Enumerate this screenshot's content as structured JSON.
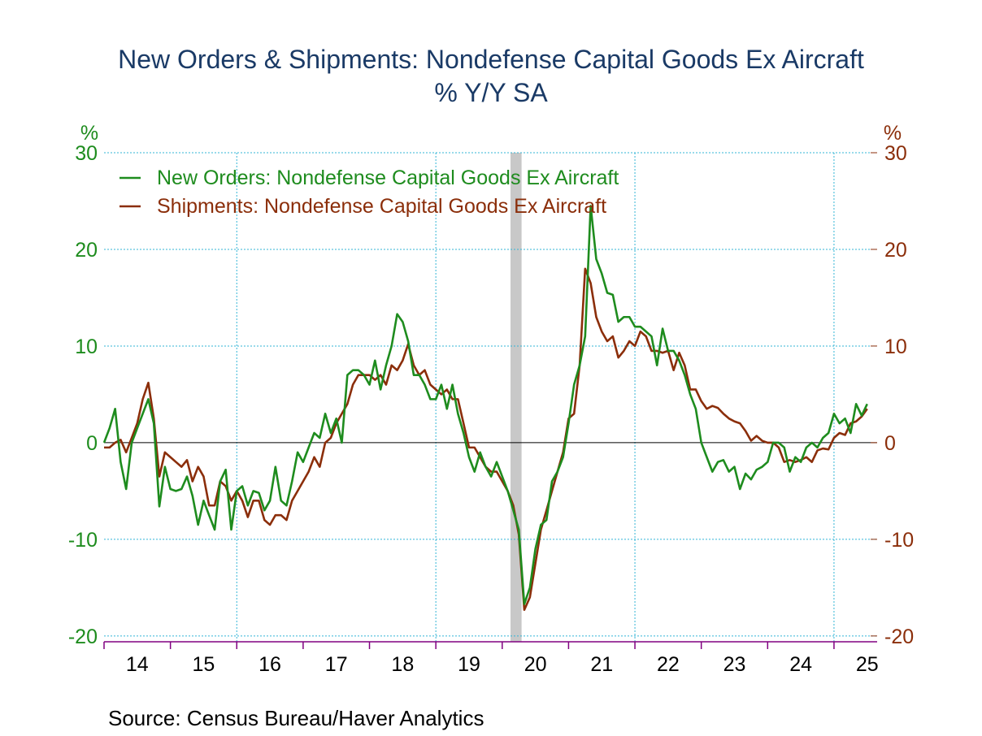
{
  "chart_data": {
    "type": "line",
    "title": "New Orders & Shipments: Nondefense Capital Goods Ex Aircraft",
    "subtitle": "% Y/Y   SA",
    "y_label": "%",
    "y2_label": "%",
    "source": "Source:  Census Bureau/Haver Analytics",
    "xlim": [
      2014,
      2025.65
    ],
    "xticks": [
      {
        "value": 2014.5,
        "label": "14"
      },
      {
        "value": 2015.5,
        "label": "15"
      },
      {
        "value": 2016.5,
        "label": "16"
      },
      {
        "value": 2017.5,
        "label": "17"
      },
      {
        "value": 2018.5,
        "label": "18"
      },
      {
        "value": 2019.5,
        "label": "19"
      },
      {
        "value": 2020.5,
        "label": "20"
      },
      {
        "value": 2021.5,
        "label": "21"
      },
      {
        "value": 2022.5,
        "label": "22"
      },
      {
        "value": 2023.5,
        "label": "23"
      },
      {
        "value": 2024.5,
        "label": "24"
      },
      {
        "value": 2025.5,
        "label": "25"
      }
    ],
    "xgrid": [
      2016,
      2019,
      2022,
      2025
    ],
    "recession": [
      2020.125,
      2020.292
    ],
    "ylim": [
      -20.6,
      30
    ],
    "yticks": [
      -20,
      -10,
      0,
      10,
      20,
      30
    ],
    "y2lim": [
      -20.6,
      30
    ],
    "y2ticks": [
      -20,
      -10,
      0,
      10,
      20,
      30
    ],
    "grid": true,
    "x": [
      2014.0,
      2014.083,
      2014.167,
      2014.25,
      2014.333,
      2014.417,
      2014.5,
      2014.583,
      2014.667,
      2014.75,
      2014.833,
      2014.917,
      2015.0,
      2015.083,
      2015.167,
      2015.25,
      2015.333,
      2015.417,
      2015.5,
      2015.583,
      2015.667,
      2015.75,
      2015.833,
      2015.917,
      2016.0,
      2016.083,
      2016.167,
      2016.25,
      2016.333,
      2016.417,
      2016.5,
      2016.583,
      2016.667,
      2016.75,
      2016.833,
      2016.917,
      2017.0,
      2017.083,
      2017.167,
      2017.25,
      2017.333,
      2017.417,
      2017.5,
      2017.583,
      2017.667,
      2017.75,
      2017.833,
      2017.917,
      2018.0,
      2018.083,
      2018.167,
      2018.25,
      2018.333,
      2018.417,
      2018.5,
      2018.583,
      2018.667,
      2018.75,
      2018.833,
      2018.917,
      2019.0,
      2019.083,
      2019.167,
      2019.25,
      2019.333,
      2019.417,
      2019.5,
      2019.583,
      2019.667,
      2019.75,
      2019.833,
      2019.917,
      2020.0,
      2020.083,
      2020.167,
      2020.25,
      2020.333,
      2020.417,
      2020.5,
      2020.583,
      2020.667,
      2020.75,
      2020.833,
      2020.917,
      2021.0,
      2021.083,
      2021.167,
      2021.25,
      2021.333,
      2021.417,
      2021.5,
      2021.583,
      2021.667,
      2021.75,
      2021.833,
      2021.917,
      2022.0,
      2022.083,
      2022.167,
      2022.25,
      2022.333,
      2022.417,
      2022.5,
      2022.583,
      2022.667,
      2022.75,
      2022.833,
      2022.917,
      2023.0,
      2023.083,
      2023.167,
      2023.25,
      2023.333,
      2023.417,
      2023.5,
      2023.583,
      2023.667,
      2023.75,
      2023.833,
      2023.917,
      2024.0,
      2024.083,
      2024.167,
      2024.25,
      2024.333,
      2024.417,
      2024.5,
      2024.583,
      2024.667,
      2024.75,
      2024.833,
      2024.917,
      2025.0,
      2025.083,
      2025.167,
      2025.25,
      2025.333,
      2025.417,
      2025.5
    ],
    "series": [
      {
        "name": "New Orders: Nondefense Capital Goods Ex Aircraft",
        "color": "#1e8c1e",
        "axis": "y",
        "values": [
          0,
          1.5,
          3.5,
          -2,
          -4.8,
          0,
          1.5,
          3,
          4.5,
          2,
          -6.6,
          -2.5,
          -4.8,
          -5,
          -4.8,
          -3.5,
          -5.5,
          -8.5,
          -6,
          -7.5,
          -9,
          -4,
          -2.8,
          -9,
          -5,
          -4.5,
          -6.5,
          -5,
          -5.2,
          -7,
          -6,
          -2.5,
          -6,
          -6.5,
          -4,
          -1,
          -2,
          -0.5,
          1,
          0.5,
          3,
          1,
          2.5,
          0,
          7,
          7.5,
          7.5,
          7,
          6,
          8.5,
          5.5,
          8,
          10,
          13.3,
          12.5,
          10.5,
          7,
          7,
          6,
          4.5,
          4.5,
          6,
          3.5,
          6,
          3,
          1,
          -1.5,
          -3,
          -1,
          -2.5,
          -3.5,
          -2,
          -3.5,
          -5,
          -7,
          -9,
          -16.7,
          -15,
          -11,
          -8.5,
          -8,
          -4,
          -3,
          -1.5,
          2,
          6,
          8,
          11,
          24.5,
          19,
          17.5,
          15.5,
          15.3,
          12.5,
          13,
          13,
          12,
          12,
          11.5,
          11,
          8,
          11.8,
          9.5,
          9.5,
          8.5,
          7,
          5,
          3.5,
          0,
          -1.5,
          -3,
          -2,
          -1.8,
          -3,
          -2.5,
          -4.8,
          -3.2,
          -3.8,
          -2.8,
          -2.5,
          -2,
          0,
          0,
          -0.5,
          -3,
          -1.5,
          -2,
          -0.5,
          0,
          -0.5,
          0.5,
          1,
          3,
          2,
          2.5,
          1,
          4,
          2.8,
          4
        ]
      },
      {
        "name": "Shipments: Nondefense Capital Goods Ex Aircraft",
        "color": "#8b2e0a",
        "axis": "y2",
        "values": [
          -0.5,
          -0.5,
          0,
          0.3,
          -1,
          0.5,
          2,
          4.5,
          6.2,
          2.5,
          -3.5,
          -1,
          -1.5,
          -2,
          -2.5,
          -1.8,
          -4,
          -2.5,
          -3.5,
          -6.5,
          -6.5,
          -4,
          -4.5,
          -6,
          -5,
          -6,
          -7.7,
          -6,
          -6,
          -8,
          -8.5,
          -7.5,
          -7.5,
          -8,
          -6,
          -5,
          -4,
          -3,
          -1.5,
          -2.5,
          0,
          0.5,
          2,
          3,
          4,
          6,
          7,
          7,
          7,
          6.5,
          7,
          6,
          8,
          7.5,
          8.5,
          10.2,
          8,
          7,
          7.5,
          6,
          5.5,
          5,
          5.5,
          4.5,
          4.5,
          2,
          -0.5,
          -0.5,
          -1.5,
          -2.5,
          -3,
          -3,
          -4,
          -5,
          -6.5,
          -9.5,
          -17.3,
          -16,
          -12.5,
          -9,
          -7,
          -5,
          -3,
          -1,
          2.5,
          3,
          8,
          18,
          16.5,
          13,
          11.5,
          10.5,
          11,
          8.8,
          9.5,
          10.5,
          10,
          11.5,
          11,
          9.5,
          9.5,
          9.3,
          9.5,
          7.5,
          9.3,
          8,
          5.5,
          5.5,
          4.3,
          3.5,
          3.8,
          3.6,
          3,
          2.5,
          2.2,
          2,
          1.2,
          0.2,
          0.7,
          0.2,
          0,
          0,
          -0.5,
          -2,
          -1.8,
          -2,
          -1.8,
          -1.5,
          -2,
          -0.8,
          -0.6,
          -0.7,
          0.5,
          1,
          0.8,
          2,
          2.2,
          2.7,
          3.5
        ]
      }
    ]
  }
}
